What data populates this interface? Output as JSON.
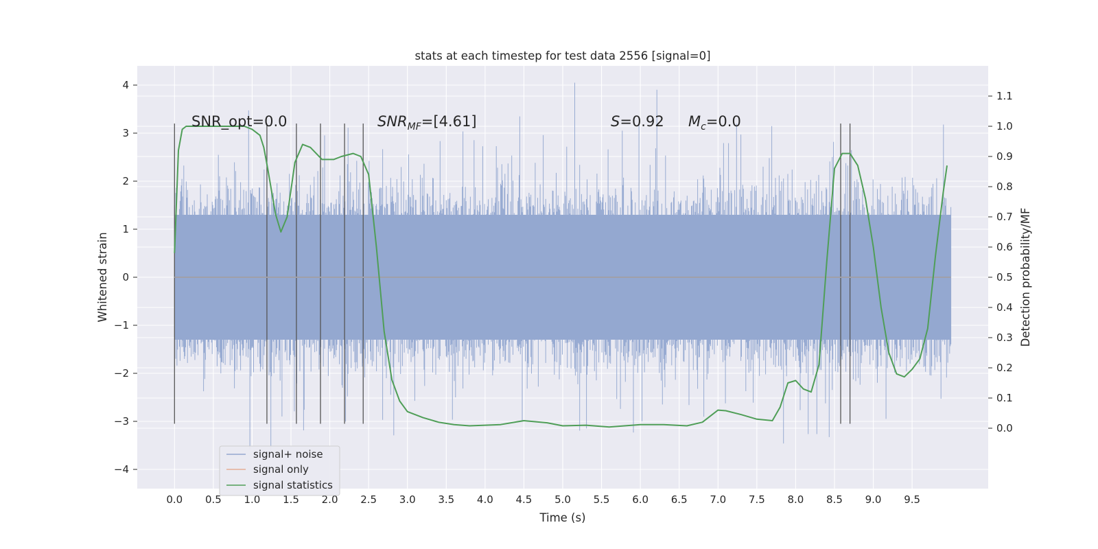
{
  "chart_data": {
    "type": "line",
    "title": "stats at each timestep for test data 2556 [signal=0]",
    "xlabel": "Time (s)",
    "ylabel_left": "Whitened strain",
    "ylabel_right": "Detection probability/MF",
    "xlim": [
      -0.48,
      10.48
    ],
    "ylim_left": [
      -4.4,
      4.4
    ],
    "ylim_right": [
      -0.2,
      1.2
    ],
    "x_ticks": [
      "0.0",
      "0.5",
      "1.0",
      "1.5",
      "2.0",
      "2.5",
      "3.0",
      "3.5",
      "4.0",
      "4.5",
      "5.0",
      "5.5",
      "6.0",
      "6.5",
      "7.0",
      "7.5",
      "8.0",
      "8.5",
      "9.0",
      "9.5"
    ],
    "y_ticks_left": [
      "4",
      "3",
      "2",
      "1",
      "0",
      "−1",
      "−2",
      "−3",
      "−4"
    ],
    "y_ticks_right": [
      "1.1",
      "1.0",
      "0.9",
      "0.8",
      "0.7",
      "0.6",
      "0.5",
      "0.4",
      "0.3",
      "0.2",
      "0.1",
      "0.0"
    ],
    "grid": true,
    "legend_position": "lower-left",
    "annotations": {
      "snr_opt": "SNR_opt=0.0",
      "snr_mf_base": "SNR",
      "snr_mf_sub": "MF",
      "snr_mf_value": "=[4.61]",
      "s_var": "S",
      "s_value": "=0.92",
      "mc_var": "M",
      "mc_sub": "c",
      "mc_value": "=0.0"
    },
    "series": [
      {
        "name": "signal+ noise",
        "color": "#94a8d0",
        "axis": "left",
        "x_range": [
          0.0,
          10.0
        ],
        "envelope_typical": [
          -1.9,
          2.3
        ],
        "envelope_extreme": [
          -3.8,
          4.05
        ]
      },
      {
        "name": "signal only",
        "color": "#e5ae96",
        "axis": "left",
        "x": [
          0.0,
          10.0
        ],
        "y": [
          0.0,
          0.0
        ]
      },
      {
        "name": "signal statistics",
        "color": "#4f9e57",
        "axis": "right",
        "x": [
          0.0,
          0.05,
          0.1,
          0.15,
          0.2,
          0.3,
          0.5,
          0.7,
          0.9,
          1.0,
          1.1,
          1.15,
          1.2,
          1.3,
          1.37,
          1.45,
          1.55,
          1.65,
          1.75,
          1.9,
          2.05,
          2.15,
          2.3,
          2.4,
          2.5,
          2.6,
          2.7,
          2.8,
          2.9,
          3.0,
          3.2,
          3.4,
          3.6,
          3.8,
          4.0,
          4.2,
          4.5,
          4.8,
          5.0,
          5.3,
          5.6,
          6.0,
          6.3,
          6.6,
          6.8,
          7.0,
          7.1,
          7.3,
          7.5,
          7.7,
          7.8,
          7.9,
          8.0,
          8.1,
          8.2,
          8.3,
          8.4,
          8.5,
          8.6,
          8.7,
          8.8,
          8.9,
          9.0,
          9.1,
          9.2,
          9.3,
          9.4,
          9.5,
          9.6,
          9.7,
          9.8,
          9.9,
          9.95
        ],
        "y": [
          0.58,
          0.92,
          0.99,
          1.0,
          1.0,
          1.0,
          1.0,
          1.0,
          1.0,
          0.99,
          0.97,
          0.93,
          0.86,
          0.71,
          0.65,
          0.7,
          0.88,
          0.94,
          0.93,
          0.89,
          0.89,
          0.9,
          0.91,
          0.9,
          0.84,
          0.6,
          0.32,
          0.16,
          0.09,
          0.055,
          0.035,
          0.02,
          0.012,
          0.008,
          0.01,
          0.012,
          0.025,
          0.018,
          0.008,
          0.01,
          0.004,
          0.012,
          0.012,
          0.008,
          0.02,
          0.06,
          0.058,
          0.045,
          0.03,
          0.025,
          0.07,
          0.15,
          0.158,
          0.13,
          0.12,
          0.21,
          0.55,
          0.86,
          0.91,
          0.91,
          0.87,
          0.76,
          0.6,
          0.4,
          0.25,
          0.18,
          0.17,
          0.195,
          0.23,
          0.33,
          0.57,
          0.78,
          0.87
        ]
      }
    ],
    "vertical_markers": [
      0.0,
      1.19,
      1.57,
      1.88,
      2.19,
      2.43,
      8.58,
      8.7
    ],
    "marker_range_left": [
      -3.05,
      3.2
    ]
  }
}
